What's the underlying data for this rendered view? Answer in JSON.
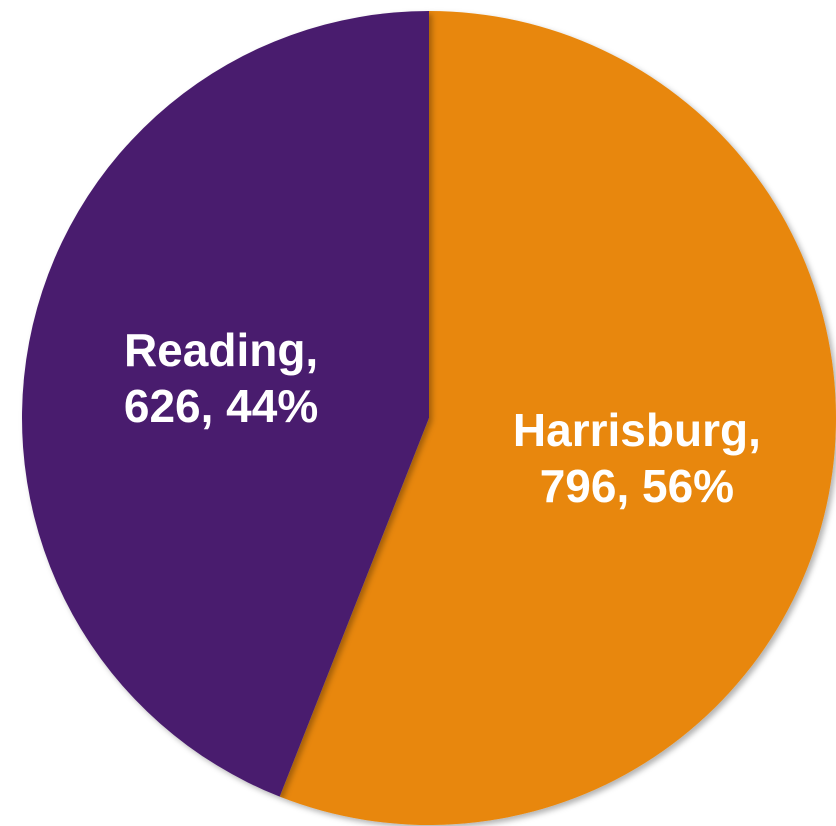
{
  "chart_data": {
    "type": "pie",
    "values": [
      796,
      626
    ],
    "value_labels": [
      "Harrisburg, 796, 56%",
      "Reading, 626, 44%"
    ],
    "colors": [
      "#e8870b",
      "#4a1f6e"
    ]
  }
}
